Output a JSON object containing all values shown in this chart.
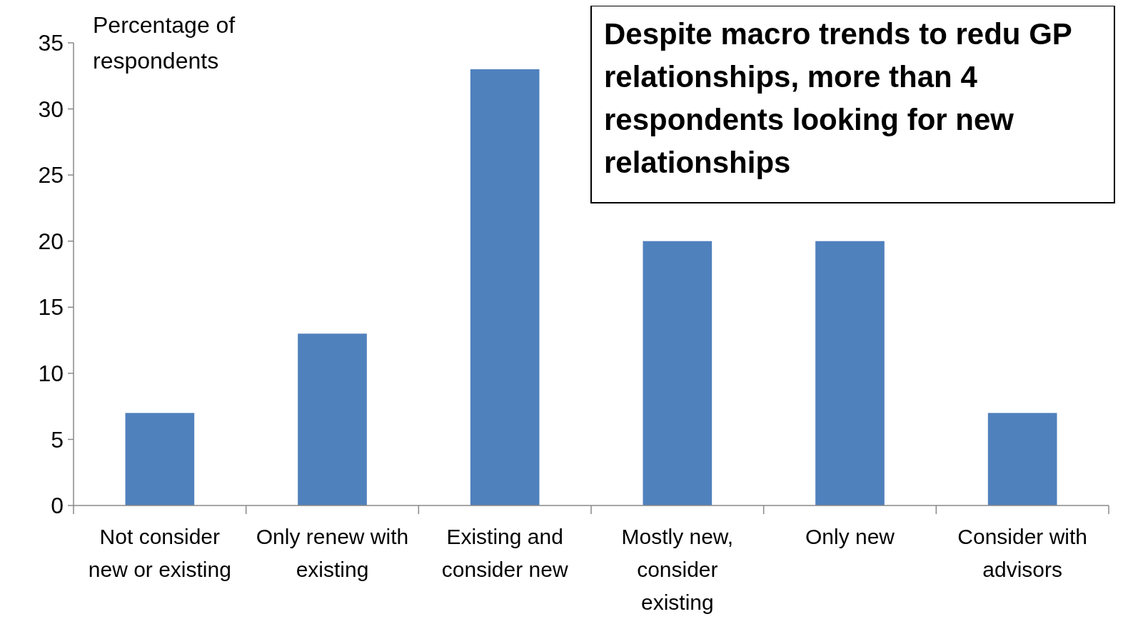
{
  "chart_data": {
    "type": "bar",
    "ylabel": "Percentage of respondents",
    "categories": [
      "Not consider new or existing",
      "Only renew with existing",
      "Existing and consider new",
      "Mostly new, consider existing",
      "Only new",
      "Consider with advisors"
    ],
    "values": [
      7,
      13,
      33,
      20,
      20,
      7
    ],
    "color": "#4f81bd",
    "ylim": [
      0,
      35
    ],
    "yticks": [
      0,
      5,
      10,
      15,
      20,
      25,
      30,
      35
    ],
    "grid": false,
    "annotations": [
      "Despite macro trends to redu GP relationships, more than 4 respondents looking for new relationships"
    ]
  }
}
